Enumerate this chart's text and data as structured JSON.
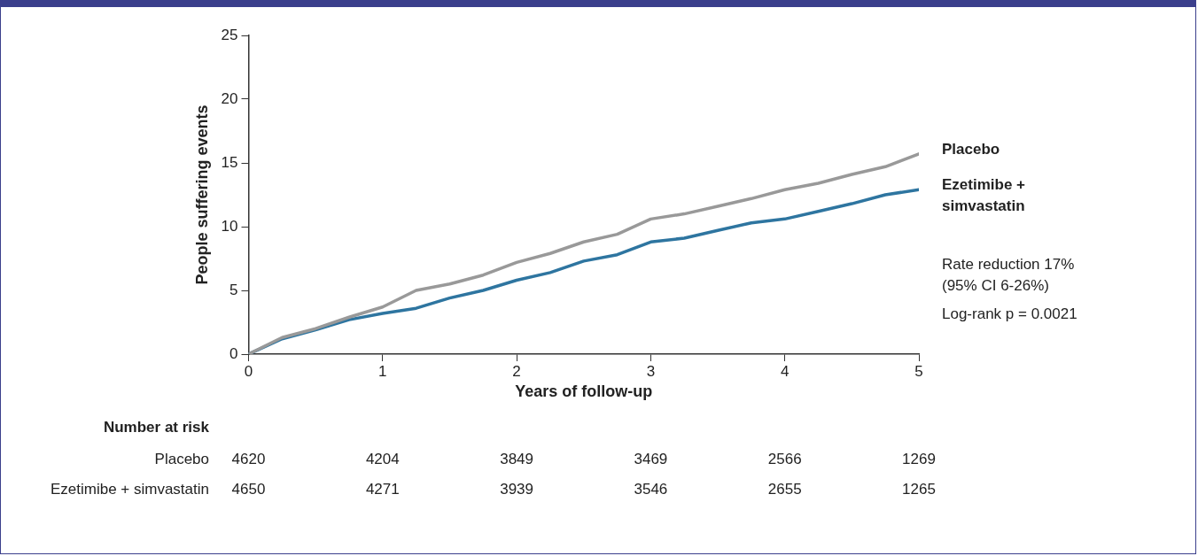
{
  "chart_data": {
    "type": "line",
    "xlabel": "Years of follow-up",
    "ylabel": "People suffering events",
    "x": [
      0,
      0.25,
      0.5,
      0.75,
      1,
      1.25,
      1.5,
      1.75,
      2,
      2.25,
      2.5,
      2.75,
      3,
      3.25,
      3.5,
      3.75,
      4,
      4.25,
      4.5,
      4.75,
      5
    ],
    "series": [
      {
        "name": "Placebo",
        "color": "#999999",
        "values": [
          0,
          1.3,
          2.0,
          2.9,
          3.7,
          5.0,
          5.5,
          6.2,
          7.2,
          7.9,
          8.8,
          9.4,
          10.6,
          11.0,
          11.6,
          12.2,
          12.9,
          13.4,
          14.1,
          14.7,
          15.7
        ]
      },
      {
        "name": "Ezetimibe + simvastatin",
        "color": "#2e75a0",
        "values": [
          0,
          1.2,
          1.9,
          2.7,
          3.2,
          3.6,
          4.4,
          5.0,
          5.8,
          6.4,
          7.3,
          7.8,
          8.8,
          9.1,
          9.7,
          10.3,
          10.6,
          11.2,
          11.8,
          12.5,
          12.9
        ]
      }
    ],
    "xlim": [
      0,
      5
    ],
    "xticks": [
      0,
      1,
      2,
      3,
      4,
      5
    ],
    "ylim": [
      0,
      25
    ],
    "yticks": [
      0,
      5,
      10,
      15,
      20,
      25
    ],
    "grid": false,
    "legend": false,
    "marker": "none",
    "line_style": "solid",
    "annotations": [
      "Rate reduction 17%",
      "(95% CI 6-26%)",
      "Log-rank p = 0.0021",
      "Number at risk",
      "Placebo",
      "4620",
      "4204",
      "3849",
      "3469",
      "2566",
      "1269",
      "Ezetimibe + simvastatin",
      "4650",
      "4271",
      "3939",
      "3546",
      "2655",
      "1265"
    ]
  }
}
